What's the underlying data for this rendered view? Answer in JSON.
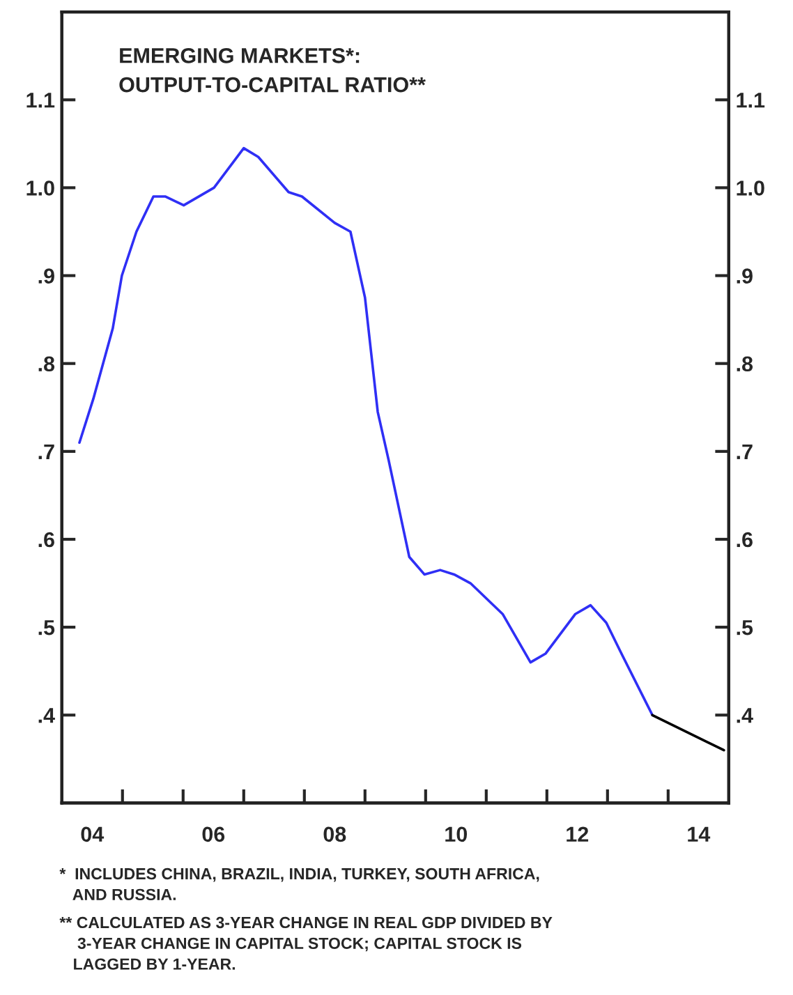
{
  "chart_data": {
    "type": "line",
    "title": "EMERGING MARKETS*:\nOUTPUT-TO-CAPITAL RATIO**",
    "series": [
      {
        "color": "#2f2ff5",
        "x": [
          2003.79,
          2004.02,
          2004.34,
          2004.49,
          2004.73,
          2005.01,
          2005.21,
          2005.51,
          2006.01,
          2006.5,
          2006.74,
          2007.24,
          2007.46,
          2008.0,
          2008.26,
          2008.5,
          2008.71,
          2008.89,
          2009.23,
          2009.48,
          2009.74,
          2009.97,
          2010.24,
          2010.77,
          2011.23,
          2011.48,
          2011.97,
          2012.22,
          2012.48,
          2012.73,
          2013.24
        ],
        "values": [
          0.71,
          0.76,
          0.84,
          0.9,
          0.95,
          0.99,
          0.99,
          0.98,
          1.0,
          1.045,
          1.035,
          0.995,
          0.99,
          0.96,
          0.95,
          0.875,
          0.745,
          0.69,
          0.58,
          0.56,
          0.565,
          0.56,
          0.55,
          0.515,
          0.46,
          0.47,
          0.515,
          0.525,
          0.505,
          0.47,
          0.4
        ]
      },
      {
        "color": "#000000",
        "x": [
          2013.24,
          2014.42
        ],
        "values": [
          0.4,
          0.36
        ]
      }
    ],
    "xlim": [
      2003.5,
      2014.5
    ],
    "xticks": [
      {
        "value": 2004,
        "label": "04"
      },
      {
        "value": 2004.5,
        "label": null
      },
      {
        "value": 2005.5,
        "label": null
      },
      {
        "value": 2006,
        "label": "06"
      },
      {
        "value": 2006.5,
        "label": null
      },
      {
        "value": 2007.5,
        "label": null
      },
      {
        "value": 2008,
        "label": "08"
      },
      {
        "value": 2008.5,
        "label": null
      },
      {
        "value": 2009.5,
        "label": null
      },
      {
        "value": 2010,
        "label": "10"
      },
      {
        "value": 2010.5,
        "label": null
      },
      {
        "value": 2011.5,
        "label": null
      },
      {
        "value": 2012,
        "label": "12"
      },
      {
        "value": 2012.5,
        "label": null
      },
      {
        "value": 2013.5,
        "label": null
      },
      {
        "value": 2014,
        "label": "14"
      }
    ],
    "ylim": [
      0.3,
      1.2
    ],
    "yticks": [
      {
        "value": 0.4,
        "label": ".4"
      },
      {
        "value": 0.5,
        "label": ".5"
      },
      {
        "value": 0.6,
        "label": ".6"
      },
      {
        "value": 0.7,
        "label": ".7"
      },
      {
        "value": 0.8,
        "label": ".8"
      },
      {
        "value": 0.9,
        "label": ".9"
      },
      {
        "value": 1.0,
        "label": "1.0"
      },
      {
        "value": 1.1,
        "label": "1.1"
      }
    ],
    "y2lim": [
      0.3,
      1.2
    ],
    "y2ticks": [
      {
        "value": 0.4,
        "label": ".4"
      },
      {
        "value": 0.5,
        "label": ".5"
      },
      {
        "value": 0.6,
        "label": ".6"
      },
      {
        "value": 0.7,
        "label": ".7"
      },
      {
        "value": 0.8,
        "label": ".8"
      },
      {
        "value": 0.9,
        "label": ".9"
      },
      {
        "value": 1.0,
        "label": "1.0"
      },
      {
        "value": 1.1,
        "label": "1.1"
      }
    ],
    "grid": false,
    "annotations": [
      "*  INCLUDES CHINA, BRAZIL, INDIA, TURKEY, SOUTH AFRICA,\n   AND RUSSIA.",
      "** CALCULATED AS 3-YEAR CHANGE IN REAL GDP DIVIDED BY\n    3-YEAR CHANGE IN CAPITAL STOCK; CAPITAL STOCK IS\n   LAGGED BY 1-YEAR."
    ]
  }
}
